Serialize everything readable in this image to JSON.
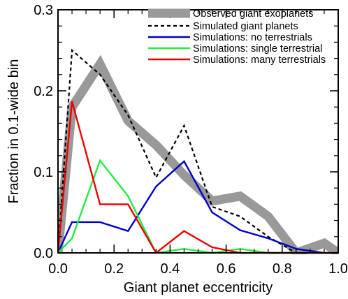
{
  "chart_data": {
    "type": "line",
    "xlabel": "Giant planet eccentricity",
    "ylabel": "Fraction in 0.1-wide bin",
    "xlim": [
      0.0,
      1.0
    ],
    "ylim": [
      0.0,
      0.3
    ],
    "xticks": [
      "0.0",
      "0.2",
      "0.4",
      "0.6",
      "0.8",
      "1.0"
    ],
    "yticks": [
      "0.0",
      "0.1",
      "0.2",
      "0.3"
    ],
    "x": [
      0.0,
      0.05,
      0.15,
      0.25,
      0.35,
      0.45,
      0.55,
      0.65,
      0.75,
      0.85,
      0.95,
      1.0
    ],
    "legend_position": "top-right",
    "series": [
      {
        "name": "Observed giant exoplanets",
        "color": "#999999",
        "style": "thick",
        "values": [
          0.0,
          0.18,
          0.233,
          0.163,
          0.133,
          0.096,
          0.064,
          0.07,
          0.045,
          0.0,
          0.012,
          0.0
        ]
      },
      {
        "name": "Simulated giant planets",
        "color": "#000000",
        "style": "dashed",
        "values": [
          0.0,
          0.25,
          0.22,
          0.17,
          0.093,
          0.157,
          0.057,
          0.045,
          0.02,
          0.0,
          0.0,
          0.0
        ]
      },
      {
        "name": "Simulations: no terrestrials",
        "color": "#0000cc",
        "style": "solid",
        "values": [
          0.0,
          0.038,
          0.038,
          0.027,
          0.082,
          0.113,
          0.05,
          0.028,
          0.018,
          0.005,
          0.0,
          0.0
        ]
      },
      {
        "name": "Simulations: single terrestrial",
        "color": "#22ee44",
        "style": "solid",
        "values": [
          0.0,
          0.018,
          0.114,
          0.07,
          0.0,
          0.005,
          0.0,
          0.005,
          0.0,
          0.0,
          0.0,
          0.0
        ]
      },
      {
        "name": "Simulations: many terrestrials",
        "color": "#ee0000",
        "style": "solid",
        "values": [
          0.0,
          0.187,
          0.06,
          0.06,
          0.0,
          0.027,
          0.007,
          0.0,
          0.0,
          0.0,
          0.0,
          0.0
        ]
      }
    ]
  }
}
